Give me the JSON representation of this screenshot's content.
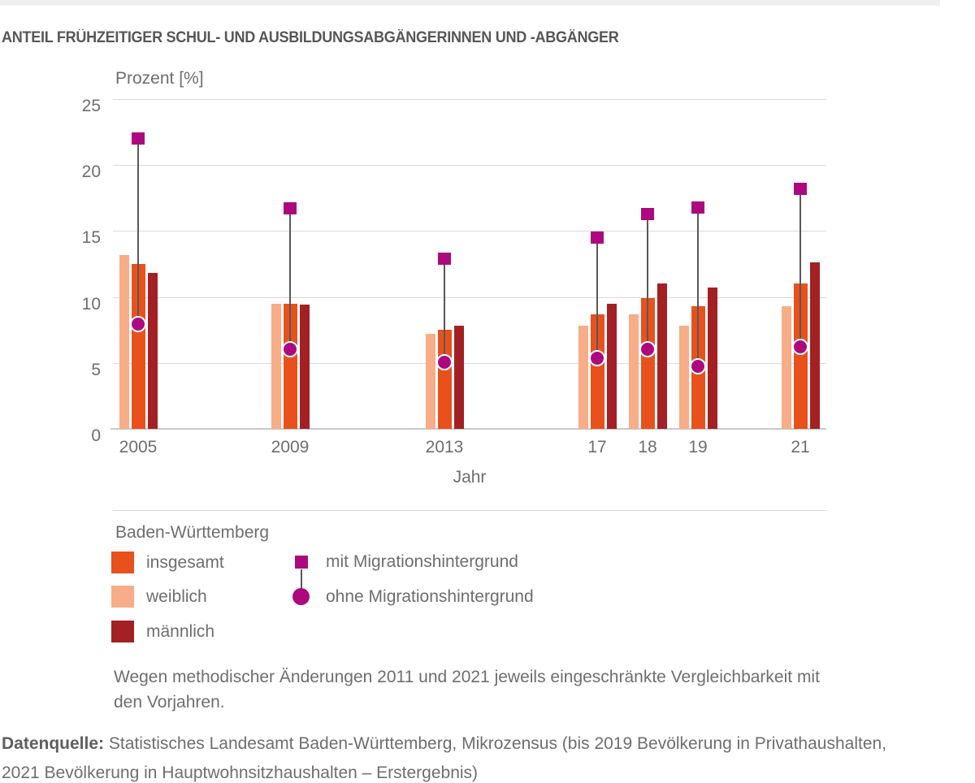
{
  "page": {
    "title": "ANTEIL FRÜHZEITIGER SCHUL- UND AUSBILDUNGSABGÄNGERINNEN UND -ABGÄNGER"
  },
  "chart_data": {
    "type": "bar",
    "title": "Anteil frühzeitiger Schul- und Ausbildungsabgängerinnen und -abgänger",
    "ylabel": "Prozent [%]",
    "xlabel": "Jahr",
    "ylim": [
      0,
      25
    ],
    "yticks": [
      0,
      5,
      10,
      15,
      20,
      25
    ],
    "grid": true,
    "legend_position": "bottom",
    "region": "Baden-Württemberg",
    "categories": [
      "2005",
      "2009",
      "2013",
      "17",
      "18",
      "19",
      "21"
    ],
    "bar_order": [
      "weiblich",
      "insgesamt",
      "männlich"
    ],
    "series": [
      {
        "name": "insgesamt",
        "kind": "bar",
        "color": "#e8511c",
        "values": [
          12.5,
          9.5,
          7.5,
          8.7,
          9.9,
          9.3,
          11.0
        ]
      },
      {
        "name": "weiblich",
        "kind": "bar",
        "color": "#f6ad88",
        "values": [
          13.2,
          9.5,
          7.2,
          7.8,
          8.7,
          7.8,
          9.3
        ]
      },
      {
        "name": "männlich",
        "kind": "bar",
        "color": "#a32024",
        "values": [
          11.8,
          9.4,
          7.8,
          9.5,
          11.0,
          10.7,
          12.6
        ]
      },
      {
        "name": "mit Migrationshintergrund",
        "kind": "marker-square",
        "color": "#ad087e",
        "values": [
          22.0,
          16.7,
          12.9,
          14.5,
          16.3,
          16.8,
          18.2
        ]
      },
      {
        "name": "ohne Migrationshintergrund",
        "kind": "marker-circle",
        "color": "#ad087e",
        "values": [
          7.9,
          6.0,
          5.0,
          5.3,
          6.0,
          4.7,
          6.2
        ]
      }
    ]
  },
  "legend": {
    "heading": "Baden-Württemberg",
    "bar_items": [
      {
        "label": "insgesamt",
        "color": "#e8511c"
      },
      {
        "label": "weiblich",
        "color": "#f6ad88"
      },
      {
        "label": "männlich",
        "color": "#a32024"
      }
    ],
    "marker_items": [
      {
        "label": "mit Migrationshintergrund",
        "shape": "square",
        "color": "#ad087e"
      },
      {
        "label": "ohne Migrationshintergrund",
        "shape": "circle",
        "color": "#ad087e"
      }
    ]
  },
  "footnote": {
    "lines": [
      "Wegen methodischer Änderungen 2011 und 2021 jeweils eingeschränkte Vergleichbarkeit mit",
      "den Vorjahren."
    ]
  },
  "source": {
    "prefix": "Datenquelle:",
    "line1": "Statistisches Landesamt Baden-Württemberg, Mikrozensus (bis 2019 Bevölkerung in Privathaushalten,",
    "line2": "2021 Bevölkerung in Hauptwohnsitzhaushalten – Erstergebnis)"
  }
}
